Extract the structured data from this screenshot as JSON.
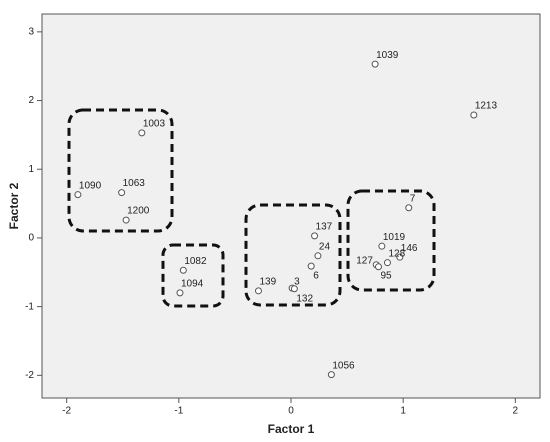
{
  "chart_data": {
    "type": "scatter",
    "x_label": "Factor 1",
    "y_label": "Factor 2",
    "labels": [
      "1039",
      "1213",
      "1003",
      "1090",
      "1063",
      "1200",
      "7",
      "137",
      "1019",
      "24",
      "146",
      "127",
      "128",
      "95",
      "6",
      "1082",
      "139",
      "3",
      "132",
      "1094",
      "1056"
    ],
    "x": [
      0.75,
      1.63,
      -1.33,
      -1.9,
      -1.51,
      -1.47,
      1.05,
      0.21,
      0.81,
      0.24,
      0.97,
      0.76,
      0.86,
      0.78,
      0.18,
      -0.96,
      -0.29,
      0.01,
      0.03,
      -0.99,
      0.36
    ],
    "values": [
      2.53,
      1.79,
      1.53,
      0.63,
      0.66,
      0.26,
      0.44,
      0.03,
      -0.12,
      -0.26,
      -0.28,
      -0.39,
      -0.36,
      -0.42,
      -0.41,
      -0.47,
      -0.77,
      -0.73,
      -0.74,
      -0.8,
      -1.99
    ],
    "color": "#555555",
    "xlim": [
      -2.22,
      2.22
    ],
    "ylim": [
      -2.33,
      3.26
    ],
    "xticks": [
      -2,
      -1,
      0,
      1,
      2
    ],
    "yticks": [
      -2,
      -1,
      0,
      1,
      2,
      3
    ]
  }
}
